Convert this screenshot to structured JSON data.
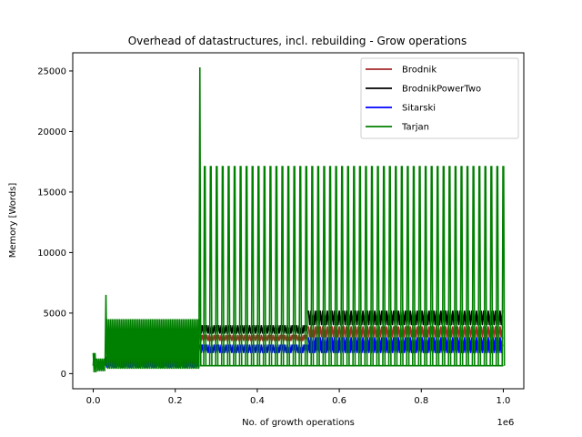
{
  "chart_data": {
    "type": "line",
    "title": "Overhead of datastructures, incl. rebuilding - Grow operations",
    "xlabel": "No. of growth operations",
    "ylabel": "Memory [Words]",
    "x_offset_label": "1e6",
    "xlim": [
      -50000,
      1050000
    ],
    "ylim": [
      -1250,
      26500
    ],
    "x_ticks": [
      0,
      200000,
      400000,
      600000,
      800000,
      1000000
    ],
    "x_tick_labels": [
      "0.0",
      "0.2",
      "0.4",
      "0.6",
      "0.8",
      "1.0"
    ],
    "y_ticks": [
      0,
      5000,
      10000,
      15000,
      20000,
      25000
    ],
    "y_tick_labels": [
      "0",
      "5000",
      "10000",
      "15000",
      "20000",
      "25000"
    ],
    "grid": false,
    "legend_position": "top-right",
    "series": [
      {
        "name": "Brodnik",
        "color": "#a52a2a",
        "bands": [
          {
            "x": [
              30000,
              260000
            ],
            "low": 600,
            "high": 1100
          },
          {
            "x": [
              260000,
              525000
            ],
            "low": 2700,
            "high": 3200
          },
          {
            "x": [
              525000,
              1000000
            ],
            "low": 3000,
            "high": 3900
          }
        ]
      },
      {
        "name": "BrodnikPowerTwo",
        "color": "#000000",
        "bands": [
          {
            "x": [
              30000,
              260000
            ],
            "low": 800,
            "high": 1400
          },
          {
            "x": [
              260000,
              525000
            ],
            "low": 3300,
            "high": 4000
          },
          {
            "x": [
              525000,
              1000000
            ],
            "low": 4000,
            "high": 5200
          }
        ]
      },
      {
        "name": "Sitarski",
        "color": "#0000ff",
        "bands": [
          {
            "x": [
              30000,
              260000
            ],
            "low": 500,
            "high": 900
          },
          {
            "x": [
              260000,
              1000000
            ],
            "low": 1700,
            "high": 2400
          },
          {
            "x": [
              525000,
              1000000
            ],
            "low": 2100,
            "high": 3000
          }
        ]
      },
      {
        "name": "Tarjan",
        "color": "#008000",
        "early_bands": [
          {
            "x": [
              0,
              8000
            ],
            "low": 100,
            "high": 1700
          },
          {
            "x": [
              8000,
              30000
            ],
            "low": 200,
            "high": 1250
          },
          {
            "x": [
              33000,
              260000
            ],
            "low": 400,
            "high": 4500
          }
        ],
        "spikes_x": [
          2000,
          31000,
          260000
        ],
        "spikes_y": [
          1700,
          6500,
          25300
        ],
        "periodic_spike_start": 272000,
        "periodic_spike_end": 1000000,
        "periodic_spike_count": 51,
        "periodic_spike_y": 17100,
        "baseline_y": 650
      }
    ]
  }
}
